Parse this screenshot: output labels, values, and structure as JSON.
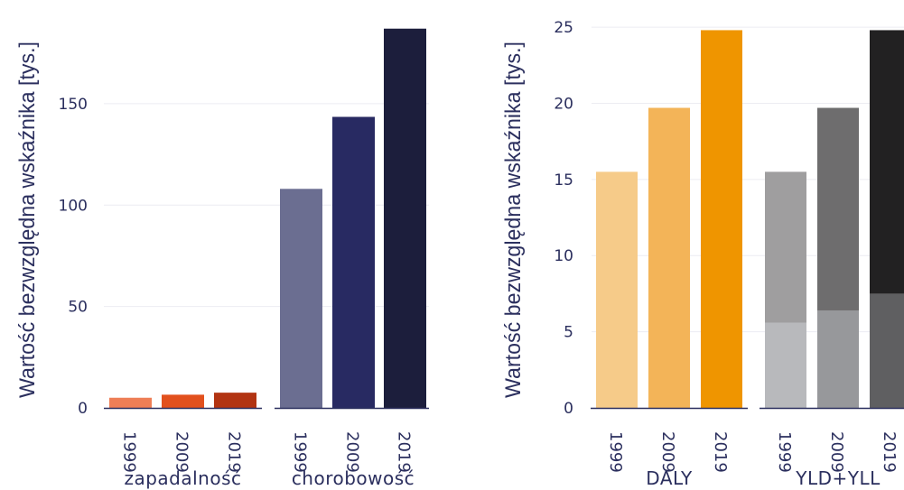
{
  "chart_data": [
    {
      "type": "bar",
      "ylabel": "Wartość bezwzględna wskaźnika  [tys.]",
      "ylim": [
        0,
        190
      ],
      "yticks": [
        0,
        50,
        100,
        150
      ],
      "groups": [
        {
          "label": "zapadalność",
          "categories": [
            "1999",
            "2009",
            "2019"
          ],
          "values": [
            5,
            6.5,
            7.5
          ],
          "colors": [
            "#ee7e56",
            "#e2501d",
            "#b23412"
          ]
        },
        {
          "label": "chorobowość",
          "categories": [
            "1999",
            "2009",
            "2019"
          ],
          "values": [
            108,
            143.5,
            187
          ],
          "colors": [
            "#6b6e91",
            "#282a62",
            "#1c1e3c"
          ]
        }
      ]
    },
    {
      "type": "bar",
      "ylabel": "Wartość bezwzględna wskaźnika  [tys.]",
      "ylim": [
        0,
        25.3
      ],
      "yticks": [
        0,
        5,
        10,
        15,
        20,
        25
      ],
      "groups": [
        {
          "label": "DALY",
          "categories": [
            "1999",
            "2009",
            "2019"
          ],
          "values": [
            15.5,
            19.7,
            24.8
          ],
          "colors": [
            "#f6cb89",
            "#f3b458",
            "#ef9500"
          ]
        },
        {
          "label": "YLD+YLL",
          "categories": [
            "1999",
            "2009",
            "2019"
          ],
          "stacked": true,
          "series": [
            {
              "values": [
                5.6,
                6.4,
                7.5
              ],
              "colors": [
                "#b8b9bc",
                "#97989b",
                "#5f5f61"
              ]
            },
            {
              "values": [
                9.9,
                13.3,
                17.3
              ],
              "colors": [
                "#9f9e9f",
                "#6e6d6e",
                "#222122"
              ]
            }
          ]
        }
      ]
    }
  ]
}
